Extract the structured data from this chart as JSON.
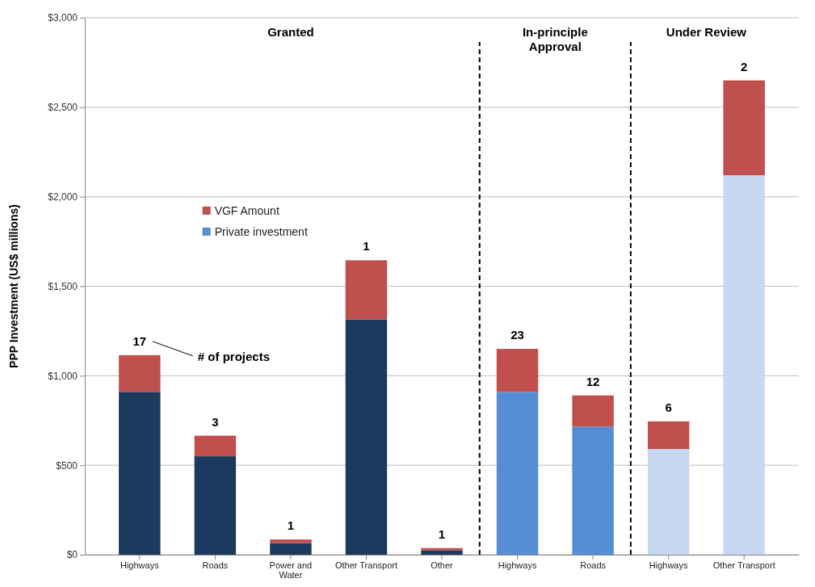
{
  "chart_data": {
    "type": "bar",
    "stacked": true,
    "ylabel": "PPP Investment (US$ millions)",
    "categories": [
      "Highways",
      "Roads",
      "Power and Water",
      "Other Transport",
      "Other",
      "Highways",
      "Roads",
      "Highways",
      "Other Transport"
    ],
    "series": [
      {
        "name": "Private investment",
        "color": "#558ed5",
        "colors": [
          "#1b3a5e",
          "#1b3a5e",
          "#1b3a5e",
          "#1b3a5e",
          "#1b3a5e",
          "#558ed5",
          "#558ed5",
          "#c6d9f1",
          "#c6d9f1"
        ],
        "values": [
          910,
          550,
          65,
          1315,
          25,
          910,
          715,
          590,
          2120
        ]
      },
      {
        "name": "VGF Amount",
        "color": "#c0504d",
        "values": [
          205,
          115,
          20,
          330,
          12,
          240,
          175,
          155,
          530
        ]
      }
    ],
    "ylim": [
      0,
      3000
    ],
    "yticks": [
      {
        "value": 0,
        "label": "$0"
      },
      {
        "value": 500,
        "label": "$500"
      },
      {
        "value": 1000,
        "label": "$1,000"
      },
      {
        "value": 1500,
        "label": "$1,500"
      },
      {
        "value": 2000,
        "label": "$2,000"
      },
      {
        "value": 2500,
        "label": "$2,500"
      },
      {
        "value": 3000,
        "label": "$3,000"
      }
    ],
    "grid": "y",
    "legend": "left",
    "annotations": [
      "Granted",
      "In-principle Approval",
      "Under Review",
      "# of projects",
      "17",
      "3",
      "1",
      "1",
      "1",
      "23",
      "12",
      "6",
      "2"
    ]
  }
}
